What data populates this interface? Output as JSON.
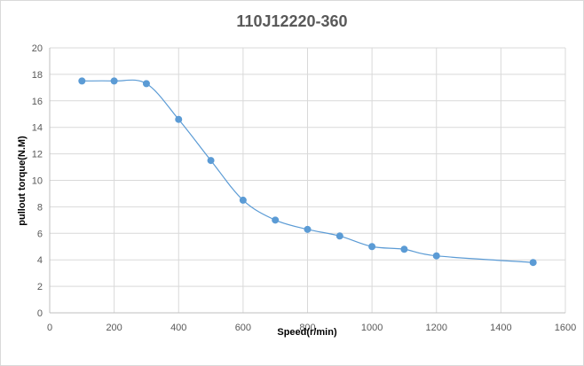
{
  "chart_data": {
    "type": "line",
    "title": "110J12220-360",
    "xlabel": "Speed(r/min)",
    "ylabel": "pullout torque(N.M)",
    "xlim": [
      0,
      1600
    ],
    "ylim": [
      0,
      20
    ],
    "x_ticks": [
      "0",
      "200",
      "400",
      "600",
      "800",
      "1000",
      "1200",
      "1400",
      "1600"
    ],
    "y_ticks": [
      "0",
      "2",
      "4",
      "6",
      "8",
      "10",
      "12",
      "14",
      "16",
      "18",
      "20"
    ],
    "grid": true,
    "legend": "none",
    "series": [
      {
        "color": "#5b9bd5",
        "x": [
          100,
          200,
          300,
          400,
          500,
          600,
          700,
          800,
          900,
          1000,
          1100,
          1200,
          1500
        ],
        "y": [
          17.5,
          17.5,
          17.3,
          14.6,
          11.5,
          8.5,
          7.0,
          6.3,
          5.8,
          5.0,
          4.8,
          4.3,
          3.8
        ]
      }
    ]
  }
}
